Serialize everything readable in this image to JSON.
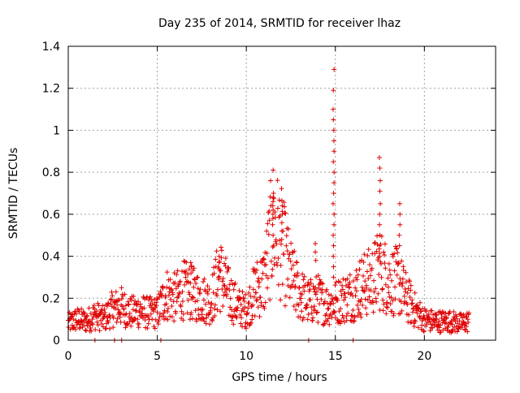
{
  "chart_data": {
    "type": "scatter",
    "title": "Day 235 of 2014, SRMTID for receiver lhaz",
    "xlabel": "GPS time / hours",
    "ylabel": "SRMTID / TECUs",
    "xlim": [
      0,
      24
    ],
    "ylim": [
      0,
      1.4
    ],
    "x_ticks": [
      0,
      5,
      10,
      15,
      20
    ],
    "x_tick_labels": [
      "0",
      "5",
      "10",
      "15",
      "20"
    ],
    "y_ticks": [
      0,
      0.2,
      0.4,
      0.6,
      0.8,
      1,
      1.2,
      1.4
    ],
    "y_tick_labels": [
      "0",
      "0.2",
      "0.4",
      "0.6",
      "0.8",
      "1",
      "1.2",
      "1.4"
    ],
    "grid": true,
    "marker": "+",
    "color": "#e00000",
    "series": [
      {
        "name": "SRMTID",
        "envelope": [
          {
            "x": 0.0,
            "y": 0.08
          },
          {
            "x": 0.5,
            "y": 0.1
          },
          {
            "x": 1.0,
            "y": 0.09
          },
          {
            "x": 1.5,
            "y": 0.12
          },
          {
            "x": 2.0,
            "y": 0.1
          },
          {
            "x": 2.5,
            "y": 0.15
          },
          {
            "x": 3.0,
            "y": 0.16
          },
          {
            "x": 3.5,
            "y": 0.13
          },
          {
            "x": 4.0,
            "y": 0.14
          },
          {
            "x": 4.5,
            "y": 0.13
          },
          {
            "x": 5.0,
            "y": 0.13
          },
          {
            "x": 5.5,
            "y": 0.22
          },
          {
            "x": 6.0,
            "y": 0.2
          },
          {
            "x": 6.5,
            "y": 0.24
          },
          {
            "x": 7.0,
            "y": 0.22
          },
          {
            "x": 7.5,
            "y": 0.2
          },
          {
            "x": 8.0,
            "y": 0.18
          },
          {
            "x": 8.5,
            "y": 0.32
          },
          {
            "x": 9.0,
            "y": 0.22
          },
          {
            "x": 9.5,
            "y": 0.16
          },
          {
            "x": 10.0,
            "y": 0.14
          },
          {
            "x": 10.5,
            "y": 0.24
          },
          {
            "x": 11.0,
            "y": 0.28
          },
          {
            "x": 11.5,
            "y": 0.55
          },
          {
            "x": 12.0,
            "y": 0.45
          },
          {
            "x": 12.5,
            "y": 0.3
          },
          {
            "x": 13.0,
            "y": 0.22
          },
          {
            "x": 13.5,
            "y": 0.18
          },
          {
            "x": 14.0,
            "y": 0.2
          },
          {
            "x": 14.5,
            "y": 0.17
          },
          {
            "x": 15.0,
            "y": 0.18
          },
          {
            "x": 15.5,
            "y": 0.2
          },
          {
            "x": 16.0,
            "y": 0.22
          },
          {
            "x": 16.5,
            "y": 0.26
          },
          {
            "x": 17.0,
            "y": 0.28
          },
          {
            "x": 17.5,
            "y": 0.34
          },
          {
            "x": 18.0,
            "y": 0.28
          },
          {
            "x": 18.5,
            "y": 0.28
          },
          {
            "x": 19.0,
            "y": 0.2
          },
          {
            "x": 19.5,
            "y": 0.14
          },
          {
            "x": 20.0,
            "y": 0.1
          },
          {
            "x": 20.5,
            "y": 0.09
          },
          {
            "x": 21.0,
            "y": 0.09
          },
          {
            "x": 21.5,
            "y": 0.09
          },
          {
            "x": 22.0,
            "y": 0.08
          },
          {
            "x": 22.5,
            "y": 0.09
          }
        ],
        "spikes": [
          {
            "x": 11.5,
            "values": [
              0.5,
              0.55,
              0.6,
              0.64,
              0.66,
              0.68,
              0.7,
              0.62,
              0.58
            ]
          },
          {
            "x": 12.0,
            "values": [
              0.48,
              0.52,
              0.56,
              0.6,
              0.64
            ]
          },
          {
            "x": 14.9,
            "values": [
              0.3,
              0.35,
              0.4,
              0.45,
              0.5,
              0.55,
              0.6,
              0.65,
              0.7,
              0.75,
              0.8,
              0.85,
              0.9,
              0.95,
              1.0,
              1.05,
              1.1,
              1.19,
              1.29
            ]
          },
          {
            "x": 17.5,
            "values": [
              0.4,
              0.45,
              0.5,
              0.55,
              0.6,
              0.65,
              0.71,
              0.76,
              0.82,
              0.87
            ]
          },
          {
            "x": 18.6,
            "values": [
              0.45,
              0.5,
              0.55,
              0.6,
              0.65
            ]
          },
          {
            "x": 13.9,
            "values": [
              0.38,
              0.42,
              0.46
            ]
          },
          {
            "x": 8.5,
            "values": [
              0.34,
              0.37,
              0.4
            ]
          },
          {
            "x": 6.9,
            "values": [
              0.32,
              0.35,
              0.37
            ]
          }
        ],
        "zero_points": [
          1.5,
          2.6,
          3.0,
          5.2,
          13.5,
          16.0
        ]
      }
    ]
  }
}
